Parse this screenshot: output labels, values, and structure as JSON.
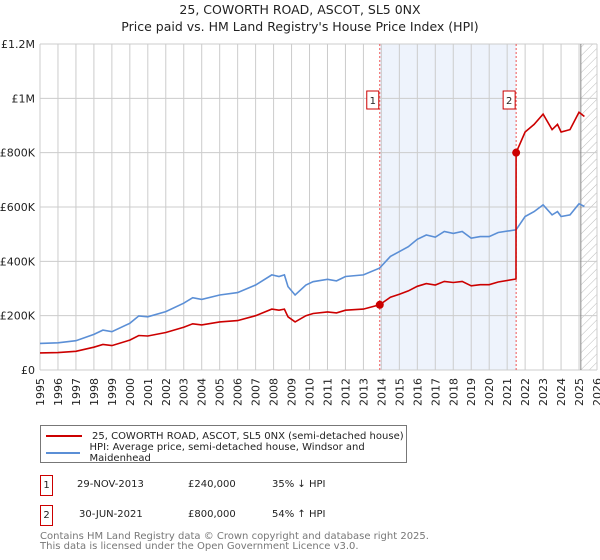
{
  "title": "25, COWORTH ROAD, ASCOT, SL5 0NX",
  "subtitle": "Price paid vs. HM Land Registry's House Price Index (HPI)",
  "colors": {
    "price": "#cc0000",
    "hpi": "#5b8fd6",
    "shade": "#eef3fc"
  },
  "chart_data": {
    "type": "line",
    "xlim": [
      1995,
      2026
    ],
    "ylim": [
      0,
      1200000
    ],
    "yticks": [
      {
        "v": 0,
        "label": "£0"
      },
      {
        "v": 200000,
        "label": "£200K"
      },
      {
        "v": 400000,
        "label": "£400K"
      },
      {
        "v": 600000,
        "label": "£600K"
      },
      {
        "v": 800000,
        "label": "£800K"
      },
      {
        "v": 1000000,
        "label": "£1M"
      },
      {
        "v": 1200000,
        "label": "£1.2M"
      }
    ],
    "xticks": [
      "1995",
      "1996",
      "1997",
      "1998",
      "1999",
      "2000",
      "2001",
      "2002",
      "2003",
      "2004",
      "2005",
      "2006",
      "2007",
      "2008",
      "2009",
      "2010",
      "2011",
      "2012",
      "2013",
      "2014",
      "2015",
      "2016",
      "2017",
      "2018",
      "2019",
      "2020",
      "2021",
      "2022",
      "2023",
      "2024",
      "2025",
      "2026"
    ],
    "shaded_range": [
      2013.91,
      2021.5
    ],
    "hatched_from": 2025.1,
    "series": [
      {
        "name": "HPI: Average price, semi-detached house, Windsor and Maidenhead",
        "color": "#5b8fd6",
        "x": [
          1995,
          1996,
          1997,
          1998,
          1998.5,
          1999,
          2000,
          2000.5,
          2001,
          2002,
          2003,
          2003.5,
          2004,
          2005,
          2006,
          2007,
          2007.9,
          2008.3,
          2008.6,
          2008.8,
          2009.2,
          2009.8,
          2010.2,
          2011,
          2011.5,
          2012,
          2013,
          2013.9,
          2014.5,
          2015,
          2015.5,
          2016,
          2016.5,
          2017,
          2017.5,
          2018,
          2018.5,
          2019,
          2019.5,
          2020,
          2020.5,
          2021.5,
          2022,
          2022.5,
          2023,
          2023.5,
          2023.8,
          2024,
          2024.5,
          2025,
          2025.3
        ],
        "y": [
          98000,
          100000,
          108000,
          131000,
          147000,
          141000,
          172000,
          199000,
          196000,
          215000,
          246000,
          266000,
          260000,
          276000,
          285000,
          313000,
          350000,
          344000,
          350000,
          307000,
          276000,
          313000,
          325000,
          334000,
          328000,
          344000,
          350000,
          375000,
          418000,
          436000,
          454000,
          481000,
          497000,
          489000,
          510000,
          503000,
          510000,
          485000,
          491000,
          491000,
          506000,
          516000,
          565000,
          583000,
          608000,
          571000,
          583000,
          565000,
          571000,
          612000,
          602000
        ]
      },
      {
        "name": "25, COWORTH ROAD, ASCOT, SL5 0NX (semi-detached house)",
        "color": "#cc0000",
        "x": [
          1995,
          1996,
          1997,
          1998,
          1998.5,
          1999,
          2000,
          2000.5,
          2001,
          2002,
          2003,
          2003.5,
          2004,
          2005,
          2006,
          2007,
          2007.9,
          2008.3,
          2008.6,
          2008.8,
          2009.2,
          2009.8,
          2010.2,
          2011,
          2011.5,
          2012,
          2013,
          2013.9,
          2014.5,
          2015,
          2015.5,
          2016,
          2016.5,
          2017,
          2017.5,
          2018,
          2018.5,
          2019,
          2019.5,
          2020,
          2020.5,
          2021.49,
          2021.5,
          2022,
          2022.5,
          2023,
          2023.5,
          2023.8,
          2024,
          2024.5,
          2025,
          2025.3
        ],
        "y": [
          63000,
          64000,
          69000,
          84000,
          94000,
          90000,
          110000,
          127000,
          125000,
          138000,
          157000,
          170000,
          166000,
          177000,
          182000,
          200000,
          224000,
          220000,
          224000,
          196000,
          177000,
          200000,
          208000,
          214000,
          210000,
          220000,
          224000,
          240000,
          268000,
          279000,
          291000,
          308000,
          318000,
          313000,
          326000,
          322000,
          326000,
          310000,
          314000,
          314000,
          324000,
          335000,
          800000,
          876000,
          904000,
          942000,
          885000,
          904000,
          876000,
          885000,
          949000,
          933000
        ]
      }
    ],
    "sales": [
      {
        "label": "1",
        "x": 2013.91,
        "y": 240000
      },
      {
        "label": "2",
        "x": 2021.5,
        "y": 800000
      }
    ]
  },
  "legend": {
    "price": "25, COWORTH ROAD, ASCOT, SL5 0NX (semi-detached house)",
    "hpi": "HPI: Average price, semi-detached house, Windsor and Maidenhead"
  },
  "transactions": [
    {
      "num": "1",
      "date": "29-NOV-2013",
      "price": "£240,000",
      "hpi": "35% ↓ HPI"
    },
    {
      "num": "2",
      "date": "30-JUN-2021",
      "price": "£800,000",
      "hpi": "54% ↑ HPI"
    }
  ],
  "footer": {
    "line1": "Contains HM Land Registry data © Crown copyright and database right 2025.",
    "line2": "This data is licensed under the Open Government Licence v3.0."
  }
}
